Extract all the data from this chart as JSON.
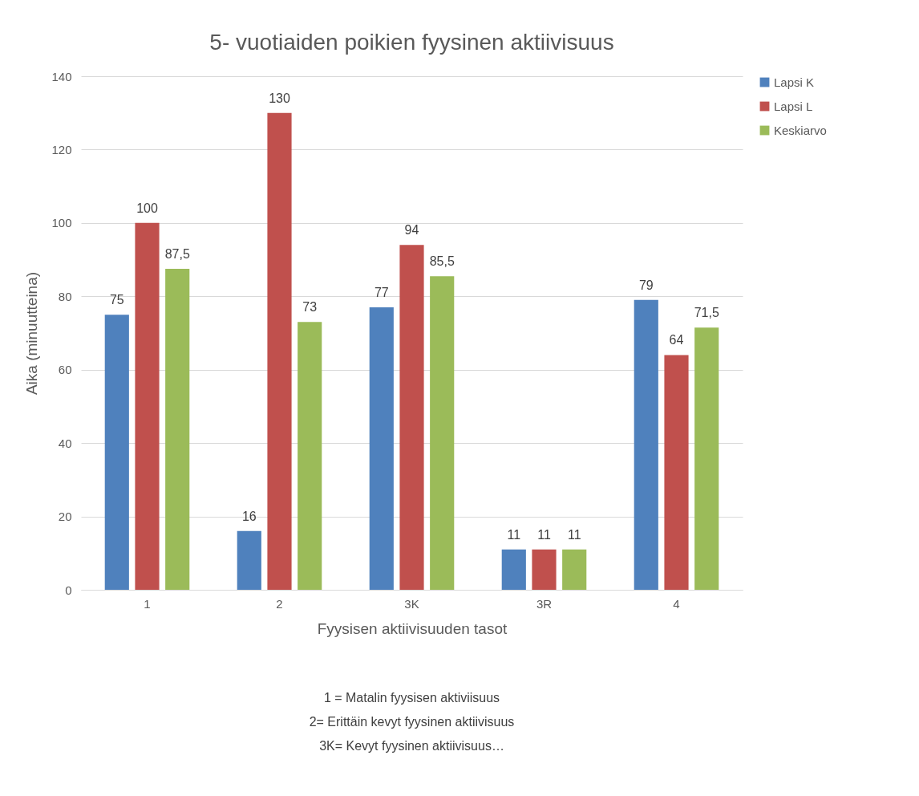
{
  "chart_data": {
    "type": "bar",
    "title": "5- vuotiaiden poikien fyysinen aktiivisuus",
    "xlabel": "Fyysisen aktiivisuuden tasot",
    "ylabel": "Aika (minuutteina)",
    "categories": [
      "1",
      "2",
      "3K",
      "3R",
      "4"
    ],
    "series": [
      {
        "name": "Lapsi K",
        "color": "#4f81bd",
        "values": [
          75,
          16,
          77,
          11,
          79
        ],
        "value_labels": [
          "75",
          "16",
          "77",
          "11",
          "79"
        ]
      },
      {
        "name": "Lapsi L",
        "color": "#c0504d",
        "values": [
          100,
          130,
          94,
          11,
          64
        ],
        "value_labels": [
          "100",
          "130",
          "94",
          "11",
          "64"
        ]
      },
      {
        "name": "Keskiarvo",
        "color": "#9bbb59",
        "values": [
          87.5,
          73,
          85.5,
          11,
          71.5
        ],
        "value_labels": [
          "87,5",
          "73",
          "85,5",
          "11",
          "71,5"
        ]
      }
    ],
    "ylim": [
      0,
      140
    ],
    "yticks": [
      0,
      20,
      40,
      60,
      80,
      100,
      120,
      140
    ],
    "grid": "y",
    "legend": "right",
    "annotations": [
      "1 = Matalin fyysisen aktiviisuus",
      "2= Erittäin kevyt fyysinen aktiivisuus",
      "3K= Kevyt fyysinen aktiivisuus…"
    ]
  }
}
